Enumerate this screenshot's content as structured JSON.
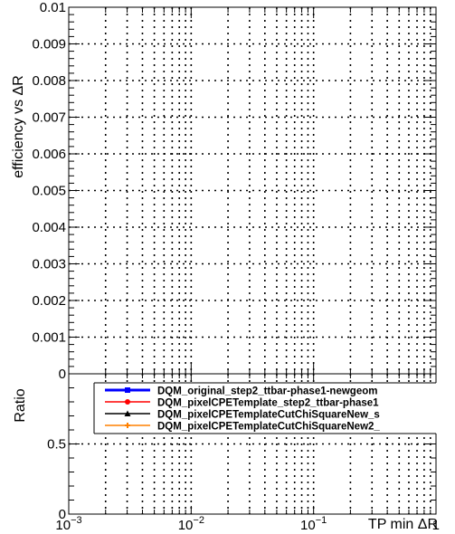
{
  "chart_data": [
    {
      "type": "line",
      "panel": "efficiency",
      "ylabel": "efficiency vs ΔR",
      "xscale": "log",
      "xlim": [
        0.001,
        1
      ],
      "ylim": [
        0,
        0.01
      ],
      "ytick_values": [
        0,
        0.001,
        0.002,
        0.003,
        0.004,
        0.005,
        0.006,
        0.007,
        0.008,
        0.009,
        0.01
      ],
      "ytick_labels": [
        "0",
        "0.001",
        "0.002",
        "0.003",
        "0.004",
        "0.005",
        "0.006",
        "0.007",
        "0.008",
        "0.009",
        "0.01"
      ],
      "grid": true,
      "series": []
    },
    {
      "type": "line",
      "panel": "ratio",
      "xlabel": "TP min ΔR",
      "ylabel": "Ratio",
      "xscale": "log",
      "xlim": [
        0.001,
        1
      ],
      "ylim": [
        0,
        1
      ],
      "ytick_values": [
        0,
        0.5
      ],
      "ytick_labels": [
        "0",
        "0.5"
      ],
      "xtick_values": [
        0.001,
        0.01,
        0.1,
        1
      ],
      "xtick_base": [
        "10",
        "10",
        "10",
        "1"
      ],
      "xtick_exp": [
        "−3",
        "−2",
        "−1",
        ""
      ],
      "grid": true,
      "legend_position": "inside-top-right",
      "series": [
        {
          "name": "DQM_original_step2_ttbar-phase1-newgeom",
          "color": "#0000ff",
          "marker": "square",
          "values": []
        },
        {
          "name": "DQM_pixelCPETemplate_step2_ttbar-phase1",
          "color": "#ff0000",
          "marker": "circle",
          "values": []
        },
        {
          "name": "DQM_pixelCPETemplateCutChiSquareNew_s",
          "color": "#000000",
          "marker": "triangle",
          "values": []
        },
        {
          "name": "DQM_pixelCPETemplateCutChiSquareNew2_",
          "color": "#ff8000",
          "marker": "cross",
          "values": []
        }
      ]
    }
  ]
}
